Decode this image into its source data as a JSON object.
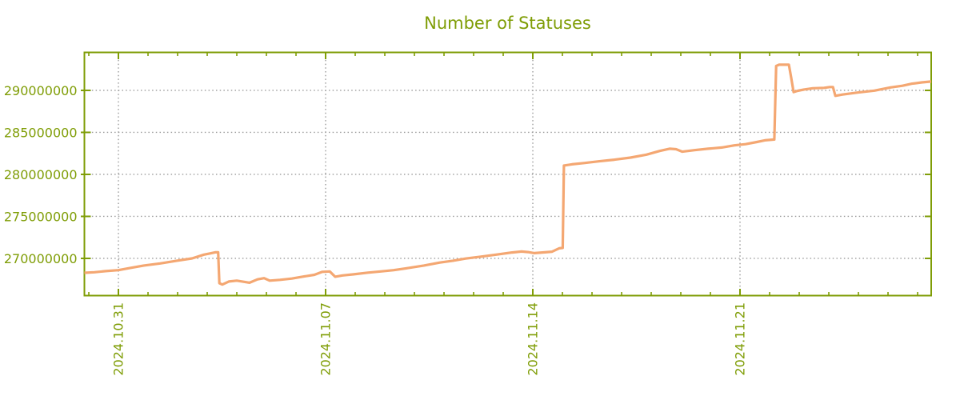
{
  "colors": {
    "axis": "#7f9d06",
    "text": "#7f9d06",
    "grid": "#9a9a9a",
    "line": "#f4a772",
    "background": "#ffffff"
  },
  "chart_data": {
    "type": "line",
    "title": "Number of Statuses",
    "xlabel": "",
    "ylabel": "",
    "grid": true,
    "legend": "none",
    "x_tick_labels": [
      "2024.10.31",
      "2024.11.07",
      "2024.11.14",
      "2024.11.21"
    ],
    "x_tick_days": [
      0,
      7,
      14,
      21
    ],
    "x_range_days": [
      -1.149,
      27.459
    ],
    "minor_x_tick_interval_days": 1,
    "y_tick_labels": [
      "270000000",
      "275000000",
      "280000000",
      "285000000",
      "290000000"
    ],
    "y_ticks": [
      270000000,
      275000000,
      280000000,
      285000000,
      290000000
    ],
    "y_range": [
      265570000,
      294520000
    ],
    "series": [
      {
        "name": "number-of-statuses",
        "points": [
          [
            -1.15,
            268280000
          ],
          [
            -0.81,
            268350000
          ],
          [
            -0.43,
            268480000
          ],
          [
            0.0,
            268600000
          ],
          [
            0.38,
            268850000
          ],
          [
            0.86,
            269150000
          ],
          [
            1.41,
            269400000
          ],
          [
            1.95,
            269700000
          ],
          [
            2.49,
            270000000
          ],
          [
            2.89,
            270450000
          ],
          [
            3.11,
            270600000
          ],
          [
            3.27,
            270720000
          ],
          [
            3.37,
            270720000
          ],
          [
            3.41,
            267050000
          ],
          [
            3.51,
            266880000
          ],
          [
            3.73,
            267250000
          ],
          [
            4.0,
            267350000
          ],
          [
            4.27,
            267200000
          ],
          [
            4.43,
            267100000
          ],
          [
            4.7,
            267500000
          ],
          [
            4.92,
            267650000
          ],
          [
            5.11,
            267350000
          ],
          [
            5.46,
            267450000
          ],
          [
            5.86,
            267600000
          ],
          [
            6.27,
            267850000
          ],
          [
            6.62,
            268050000
          ],
          [
            6.89,
            268400000
          ],
          [
            7.14,
            268450000
          ],
          [
            7.32,
            267820000
          ],
          [
            7.57,
            267970000
          ],
          [
            7.95,
            268100000
          ],
          [
            8.43,
            268300000
          ],
          [
            8.86,
            268450000
          ],
          [
            9.3,
            268600000
          ],
          [
            9.78,
            268850000
          ],
          [
            10.32,
            269150000
          ],
          [
            10.86,
            269500000
          ],
          [
            11.3,
            269720000
          ],
          [
            11.73,
            269980000
          ],
          [
            12.22,
            270200000
          ],
          [
            12.76,
            270450000
          ],
          [
            13.3,
            270700000
          ],
          [
            13.62,
            270820000
          ],
          [
            13.84,
            270750000
          ],
          [
            14.05,
            270630000
          ],
          [
            14.32,
            270700000
          ],
          [
            14.65,
            270800000
          ],
          [
            14.89,
            271200000
          ],
          [
            15.01,
            271250000
          ],
          [
            15.05,
            281050000
          ],
          [
            15.32,
            281200000
          ],
          [
            15.73,
            281350000
          ],
          [
            16.22,
            281550000
          ],
          [
            16.76,
            281750000
          ],
          [
            17.3,
            282000000
          ],
          [
            17.84,
            282350000
          ],
          [
            18.3,
            282800000
          ],
          [
            18.62,
            283050000
          ],
          [
            18.84,
            283000000
          ],
          [
            19.05,
            282700000
          ],
          [
            19.46,
            282880000
          ],
          [
            19.92,
            283050000
          ],
          [
            20.38,
            283200000
          ],
          [
            20.81,
            283450000
          ],
          [
            21.19,
            283600000
          ],
          [
            21.57,
            283850000
          ],
          [
            21.84,
            284050000
          ],
          [
            22.16,
            284150000
          ],
          [
            22.22,
            292900000
          ],
          [
            22.32,
            293050000
          ],
          [
            22.65,
            293050000
          ],
          [
            22.73,
            291500000
          ],
          [
            22.81,
            289800000
          ],
          [
            22.95,
            289950000
          ],
          [
            23.16,
            290100000
          ],
          [
            23.46,
            290250000
          ],
          [
            23.84,
            290300000
          ],
          [
            24.03,
            290400000
          ],
          [
            24.14,
            290400000
          ],
          [
            24.22,
            289350000
          ],
          [
            24.46,
            289500000
          ],
          [
            25.0,
            289750000
          ],
          [
            25.54,
            289970000
          ],
          [
            26.08,
            290350000
          ],
          [
            26.49,
            290550000
          ],
          [
            26.81,
            290800000
          ],
          [
            27.14,
            290950000
          ],
          [
            27.46,
            291050000
          ]
        ]
      }
    ]
  }
}
